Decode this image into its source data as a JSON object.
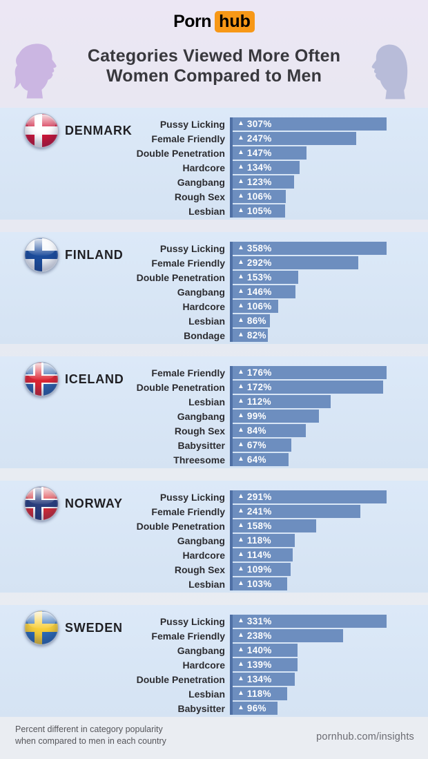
{
  "header": {
    "logo": {
      "porn": "Porn",
      "hub": "hub"
    },
    "title_line1": "Categories Viewed More Often",
    "title_line2": "Women Compared to Men"
  },
  "footer": {
    "note_line1": "Percent different in category popularity",
    "note_line2": "when compared to men in each country",
    "site": "pornhub.com/insights"
  },
  "colors": {
    "logo_badge": "#f79817",
    "title_text": "#38383d",
    "female_silhouette": "#cbb6e2",
    "male_silhouette": "#b8bcd9",
    "section_bg_top": "#dce9f8",
    "section_bg_bottom": "#d5e3f3",
    "bar_fill": "#6d8ebf",
    "axis_line": "#4e6fa4",
    "bar_text": "#ffffff"
  },
  "chart_data": [
    {
      "type": "bar",
      "orientation": "horizontal",
      "country": "DENMARK",
      "unit": "%",
      "marker": "▲",
      "flag": {
        "bg": "#d01536",
        "cross": "#ffffff"
      },
      "categories": [
        "Pussy Licking",
        "Female Friendly",
        "Double Penetration",
        "Hardcore",
        "Gangbang",
        "Rough Sex",
        "Lesbian"
      ],
      "values": [
        307,
        247,
        147,
        134,
        123,
        106,
        105
      ]
    },
    {
      "type": "bar",
      "orientation": "horizontal",
      "country": "FINLAND",
      "unit": "%",
      "marker": "▲",
      "flag": {
        "bg": "#f2f6fa",
        "cross": "#1c4d9c"
      },
      "categories": [
        "Pussy Licking",
        "Female Friendly",
        "Double Penetration",
        "Gangbang",
        "Hardcore",
        "Lesbian",
        "Bondage"
      ],
      "values": [
        358,
        292,
        153,
        146,
        106,
        86,
        82
      ]
    },
    {
      "type": "bar",
      "orientation": "horizontal",
      "country": "ICELAND",
      "unit": "%",
      "marker": "▲",
      "flag": {
        "bg": "#2e64ad",
        "cross": "#dc2632",
        "cross_border": "#ffffff"
      },
      "categories": [
        "Female Friendly",
        "Double Penetration",
        "Lesbian",
        "Gangbang",
        "Rough Sex",
        "Babysitter",
        "Threesome"
      ],
      "values": [
        176,
        172,
        112,
        99,
        84,
        67,
        64
      ]
    },
    {
      "type": "bar",
      "orientation": "horizontal",
      "country": "NORWAY",
      "unit": "%",
      "marker": "▲",
      "flag": {
        "bg": "#da2d35",
        "cross": "#2a3f7e",
        "cross_border": "#ffffff"
      },
      "categories": [
        "Pussy Licking",
        "Female Friendly",
        "Double Penetration",
        "Gangbang",
        "Hardcore",
        "Rough Sex",
        "Lesbian"
      ],
      "values": [
        291,
        241,
        158,
        118,
        114,
        109,
        103
      ]
    },
    {
      "type": "bar",
      "orientation": "horizontal",
      "country": "SWEDEN",
      "unit": "%",
      "marker": "▲",
      "flag": {
        "bg": "#2d6db8",
        "cross": "#f8cf38"
      },
      "categories": [
        "Pussy Licking",
        "Female Friendly",
        "Gangbang",
        "Hardcore",
        "Double Penetration",
        "Lesbian",
        "Babysitter"
      ],
      "values": [
        331,
        238,
        140,
        139,
        134,
        118,
        96
      ]
    }
  ],
  "layout_meta": {
    "note": "bars normalized per country; longest bar spans full chart width"
  }
}
